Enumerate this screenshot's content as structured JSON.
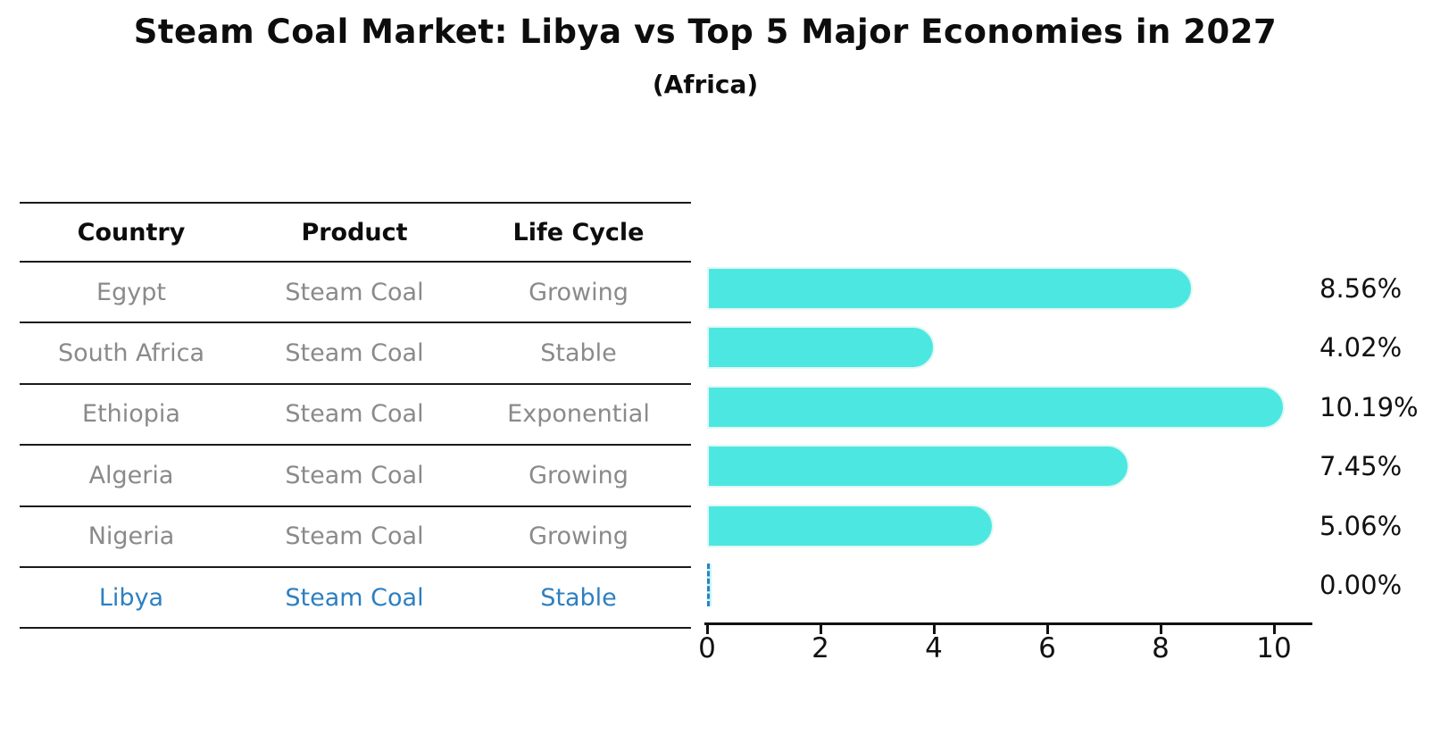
{
  "title": "Steam Coal Market: Libya vs Top 5 Major Economies in 2027",
  "subtitle": "(Africa)",
  "table": {
    "headers": [
      "Country",
      "Product",
      "Life Cycle"
    ],
    "rows": [
      {
        "country": "Egypt",
        "product": "Steam Coal",
        "life_cycle": "Growing",
        "highlight": false
      },
      {
        "country": "South Africa",
        "product": "Steam Coal",
        "life_cycle": "Stable",
        "highlight": false
      },
      {
        "country": "Ethiopia",
        "product": "Steam Coal",
        "life_cycle": "Exponential",
        "highlight": false
      },
      {
        "country": "Algeria",
        "product": "Steam Coal",
        "life_cycle": "Growing",
        "highlight": false
      },
      {
        "country": "Nigeria",
        "product": "Steam Coal",
        "life_cycle": "Growing",
        "highlight": false
      },
      {
        "country": "Libya",
        "product": "Steam Coal",
        "life_cycle": "Stable",
        "highlight": true
      }
    ]
  },
  "chart_data": {
    "type": "bar",
    "orientation": "horizontal",
    "title": "Steam Coal Market: Libya vs Top 5 Major Economies in 2027",
    "subtitle": "(Africa)",
    "categories": [
      "Egypt",
      "South Africa",
      "Ethiopia",
      "Algeria",
      "Nigeria",
      "Libya"
    ],
    "values": [
      8.56,
      4.02,
      10.19,
      7.45,
      5.06,
      0.0
    ],
    "value_labels": [
      "8.56%",
      "4.02%",
      "10.19%",
      "7.45%",
      "5.06%",
      "0.00%"
    ],
    "xticks": [
      0,
      2,
      4,
      6,
      8,
      10
    ],
    "xlim": [
      0,
      10.7
    ],
    "grid": false,
    "legend": "none",
    "bar_color": "#4DE7E1",
    "highlight_bar_style": "dashed-outline-at-zero",
    "highlight_color": "#2D7FC1"
  },
  "colors": {
    "background": "#FFFFFF",
    "bar": "#4DE7E1",
    "bar_edge": "#DFF8F3",
    "highlight_blue": "#2D7FC1",
    "table_text_gray": "#8A8A8A",
    "heading_black": "#111111"
  }
}
